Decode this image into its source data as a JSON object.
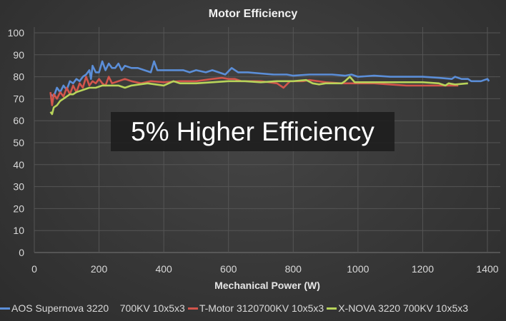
{
  "chart_data": {
    "type": "line",
    "title": "Motor Efficiency",
    "xlabel": "Mechanical Power (W)",
    "ylabel": "",
    "xlim": [
      0,
      1400
    ],
    "ylim": [
      0,
      100
    ],
    "xticks": [
      "0",
      "200",
      "400",
      "600",
      "800",
      "1000",
      "1200",
      "1400"
    ],
    "yticks": [
      "0",
      "10",
      "20",
      "30",
      "40",
      "50",
      "60",
      "70",
      "80",
      "90",
      "100"
    ],
    "grid": true,
    "legend_position": "bottom",
    "annotation": "5% Higher Efficiency",
    "series": [
      {
        "name": "AOS Supernova 3220    700KV 10x5x3",
        "color": "#5b8ed8",
        "points": [
          [
            50,
            72
          ],
          [
            60,
            71
          ],
          [
            70,
            75
          ],
          [
            80,
            73
          ],
          [
            90,
            76
          ],
          [
            100,
            74
          ],
          [
            110,
            78
          ],
          [
            120,
            77
          ],
          [
            130,
            79
          ],
          [
            140,
            78
          ],
          [
            150,
            80
          ],
          [
            160,
            81
          ],
          [
            170,
            83
          ],
          [
            175,
            79
          ],
          [
            180,
            85
          ],
          [
            190,
            82
          ],
          [
            200,
            82
          ],
          [
            210,
            87
          ],
          [
            220,
            83
          ],
          [
            230,
            86
          ],
          [
            240,
            84
          ],
          [
            250,
            84
          ],
          [
            260,
            86
          ],
          [
            270,
            83
          ],
          [
            280,
            85
          ],
          [
            300,
            84
          ],
          [
            320,
            84
          ],
          [
            340,
            83
          ],
          [
            360,
            82
          ],
          [
            370,
            87
          ],
          [
            380,
            83
          ],
          [
            400,
            83
          ],
          [
            430,
            83
          ],
          [
            460,
            83
          ],
          [
            480,
            82
          ],
          [
            500,
            83
          ],
          [
            530,
            82
          ],
          [
            550,
            83
          ],
          [
            570,
            82
          ],
          [
            590,
            81
          ],
          [
            610,
            84
          ],
          [
            630,
            82
          ],
          [
            660,
            82
          ],
          [
            700,
            81.5
          ],
          [
            740,
            81
          ],
          [
            780,
            81
          ],
          [
            800,
            80.5
          ],
          [
            850,
            81
          ],
          [
            880,
            81
          ],
          [
            920,
            81
          ],
          [
            960,
            80.5
          ],
          [
            980,
            81
          ],
          [
            1000,
            80
          ],
          [
            1050,
            80.5
          ],
          [
            1100,
            80
          ],
          [
            1150,
            80
          ],
          [
            1200,
            80
          ],
          [
            1250,
            79.5
          ],
          [
            1290,
            79
          ],
          [
            1300,
            80
          ],
          [
            1320,
            79
          ],
          [
            1340,
            79
          ],
          [
            1350,
            78
          ],
          [
            1380,
            78
          ],
          [
            1400,
            79
          ],
          [
            1405,
            78
          ]
        ]
      },
      {
        "name": "T-Motor 3120700KV 10x5x3",
        "color": "#d2554c",
        "points": [
          [
            50,
            73
          ],
          [
            55,
            67
          ],
          [
            60,
            72
          ],
          [
            70,
            70
          ],
          [
            80,
            73
          ],
          [
            90,
            71
          ],
          [
            100,
            75
          ],
          [
            110,
            72
          ],
          [
            120,
            76
          ],
          [
            130,
            73
          ],
          [
            140,
            77
          ],
          [
            150,
            75
          ],
          [
            160,
            80
          ],
          [
            170,
            76
          ],
          [
            180,
            78
          ],
          [
            190,
            77
          ],
          [
            200,
            79
          ],
          [
            210,
            77
          ],
          [
            220,
            76
          ],
          [
            230,
            80
          ],
          [
            240,
            77
          ],
          [
            260,
            78
          ],
          [
            280,
            79
          ],
          [
            300,
            78
          ],
          [
            330,
            77
          ],
          [
            360,
            78
          ],
          [
            400,
            77.5
          ],
          [
            450,
            78
          ],
          [
            500,
            78
          ],
          [
            550,
            79
          ],
          [
            580,
            79.5
          ],
          [
            600,
            79
          ],
          [
            620,
            79
          ],
          [
            640,
            78
          ],
          [
            700,
            78
          ],
          [
            750,
            77
          ],
          [
            770,
            75
          ],
          [
            790,
            78
          ],
          [
            830,
            78
          ],
          [
            850,
            78.5
          ],
          [
            900,
            77.5
          ],
          [
            950,
            77
          ],
          [
            1000,
            77
          ],
          [
            1050,
            77
          ],
          [
            1100,
            76.5
          ],
          [
            1150,
            76
          ],
          [
            1200,
            76
          ],
          [
            1250,
            76
          ],
          [
            1280,
            76
          ],
          [
            1310,
            76
          ]
        ]
      },
      {
        "name": "X-NOVA 3220 700KV 10x5x3",
        "color": "#b8d45a",
        "points": [
          [
            50,
            64
          ],
          [
            55,
            63
          ],
          [
            60,
            66
          ],
          [
            70,
            67
          ],
          [
            80,
            69
          ],
          [
            90,
            70
          ],
          [
            100,
            71
          ],
          [
            110,
            72
          ],
          [
            120,
            72
          ],
          [
            130,
            73
          ],
          [
            150,
            74
          ],
          [
            170,
            75
          ],
          [
            190,
            75
          ],
          [
            210,
            76
          ],
          [
            240,
            76
          ],
          [
            260,
            76
          ],
          [
            280,
            75
          ],
          [
            300,
            76
          ],
          [
            350,
            77
          ],
          [
            400,
            76
          ],
          [
            430,
            78
          ],
          [
            450,
            77
          ],
          [
            500,
            77
          ],
          [
            550,
            77.5
          ],
          [
            600,
            78
          ],
          [
            650,
            78
          ],
          [
            700,
            77.5
          ],
          [
            750,
            78
          ],
          [
            800,
            78
          ],
          [
            840,
            78.5
          ],
          [
            860,
            77
          ],
          [
            880,
            76.5
          ],
          [
            900,
            77
          ],
          [
            950,
            77
          ],
          [
            960,
            78
          ],
          [
            975,
            80
          ],
          [
            990,
            77.5
          ],
          [
            1050,
            77.5
          ],
          [
            1100,
            77.5
          ],
          [
            1150,
            77.5
          ],
          [
            1200,
            77.5
          ],
          [
            1250,
            77
          ],
          [
            1270,
            76
          ],
          [
            1280,
            77
          ],
          [
            1300,
            76.5
          ],
          [
            1340,
            77
          ]
        ]
      }
    ]
  }
}
